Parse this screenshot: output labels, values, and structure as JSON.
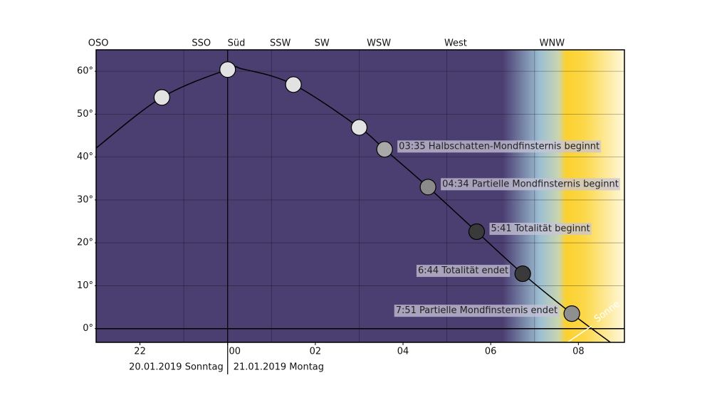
{
  "chart_data": {
    "type": "line",
    "compass": {
      "labels": [
        "OSO",
        "SSO",
        "Süd",
        "SSW",
        "SW",
        "WSW",
        "West",
        "WNW"
      ],
      "x": [
        21.05,
        23.4,
        24.2,
        25.2,
        26.15,
        27.45,
        29.2,
        31.4
      ]
    },
    "dates": [
      "20.01.2019 Sonntag",
      "21.01.2019 Montag"
    ],
    "xlim": [
      21,
      33.05
    ],
    "ylim": [
      -3.2,
      65
    ],
    "xticks": [
      {
        "value": 22,
        "label": "22"
      },
      {
        "value": 24,
        "label": "00"
      },
      {
        "value": 26,
        "label": "02"
      },
      {
        "value": 28,
        "label": "04"
      },
      {
        "value": 30,
        "label": "06"
      },
      {
        "value": 32,
        "label": "08"
      }
    ],
    "xgrid": [
      23,
      25,
      27,
      29,
      31
    ],
    "yticks": [
      {
        "value": 0,
        "label": "0°"
      },
      {
        "value": 10,
        "label": "10°"
      },
      {
        "value": 20,
        "label": "20°"
      },
      {
        "value": 30,
        "label": "30°"
      },
      {
        "value": 40,
        "label": "40°"
      },
      {
        "value": 50,
        "label": "50°"
      },
      {
        "value": 60,
        "label": "60°"
      }
    ],
    "grid": true,
    "curve": {
      "x": [
        21,
        22.5,
        24,
        24.35,
        25.5,
        27,
        27.58,
        28.57,
        29.68,
        30.73,
        31.85,
        32.73
      ],
      "y": [
        42.1,
        53.9,
        60.4,
        60.5,
        56.9,
        46.9,
        41.8,
        33,
        22.6,
        12.8,
        3.5,
        -3.2
      ],
      "color": "#000000"
    },
    "moon": {
      "x": [
        22.5,
        24,
        25.5,
        27,
        27.58,
        28.57,
        29.68,
        30.73,
        31.85
      ],
      "values": [
        53.9,
        60.4,
        56.9,
        46.9,
        41.8,
        33,
        22.6,
        12.8,
        3.5
      ],
      "colors": [
        "#e2e2e2",
        "#e2e2e2",
        "#e2e2e2",
        "#e2e2e2",
        "#a8a8a8",
        "#8a8a8a",
        "#3a3a3a",
        "#3a3a3a",
        "#8f8f8f"
      ],
      "labels": [
        null,
        null,
        null,
        null,
        "03:35 Halbschatten-Mondfinsternis beginnt",
        "04:34 Partielle Mondfinsternis beginnt",
        "5:41 Totalität beginnt",
        "6:44 Totalität endet",
        "7:51 Partielle Mondfinsternis endet"
      ]
    },
    "sun": {
      "name": "Sonne",
      "x": [
        31.75,
        32.3
      ],
      "y": [
        -3.2,
        0.6
      ],
      "color": "#ffffff"
    }
  }
}
